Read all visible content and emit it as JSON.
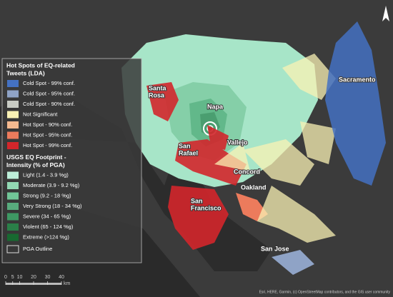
{
  "legend": {
    "sections": [
      {
        "title_lines": [
          "Hot Spots of EQ-related",
          "Tweets (LDA)"
        ],
        "items": [
          {
            "label": "Cold Spot - 99% conf.",
            "color": "#4471c2"
          },
          {
            "label": "Cold Spot - 95% conf.",
            "color": "#8fa3c6"
          },
          {
            "label": "Cold Spot - 90% conf.",
            "color": "#c8cbc4"
          },
          {
            "label": "Not Significant",
            "color": "#f9f1b4"
          },
          {
            "label": "Hot Spot - 90% conf.",
            "color": "#f4b98f"
          },
          {
            "label": "Hot Spot - 95% conf.",
            "color": "#ec7b5c"
          },
          {
            "label": "Hot Spot - 99% conf.",
            "color": "#d3262b"
          }
        ]
      },
      {
        "title_lines": [
          "USGS EQ Footprint -",
          "Intensity (% of PGA)"
        ],
        "items": [
          {
            "label": "Light (1.4 - 3.9 %g)",
            "color": "#bdeed9"
          },
          {
            "label": "Moderate (3.9 - 9.2 %g)",
            "color": "#92d8b3"
          },
          {
            "label": "Strong (9.2 - 18 %g)",
            "color": "#71c597"
          },
          {
            "label": "Very Strong (18 - 34 %g)",
            "color": "#58ab7d"
          },
          {
            "label": "Severe (34 - 65 %g)",
            "color": "#3e9863"
          },
          {
            "label": "Violent (65 - 124 %g)",
            "color": "#2a7f48"
          },
          {
            "label": "Extreme (>124 %g)",
            "color": "#176930"
          }
        ]
      }
    ],
    "outline_label": "PGA Outline"
  },
  "cities": [
    {
      "lines": [
        "Sacramento"
      ]
    },
    {
      "lines": [
        "Santa",
        "Rosa"
      ]
    },
    {
      "lines": [
        "Napa"
      ]
    },
    {
      "lines": [
        "Vallejo"
      ]
    },
    {
      "lines": [
        "San",
        "Rafael"
      ]
    },
    {
      "lines": [
        "Concord"
      ]
    },
    {
      "lines": [
        "Oakland"
      ]
    },
    {
      "lines": [
        "San",
        "Francisco"
      ]
    },
    {
      "lines": [
        "San Jose"
      ]
    }
  ],
  "scale_bar": {
    "ticks": [
      0,
      5,
      10,
      20,
      30,
      40
    ],
    "unit": "km"
  },
  "attribution": "Esri, HERE, Garmin, (c) OpenStreetMap contributors, and the GIS user community"
}
